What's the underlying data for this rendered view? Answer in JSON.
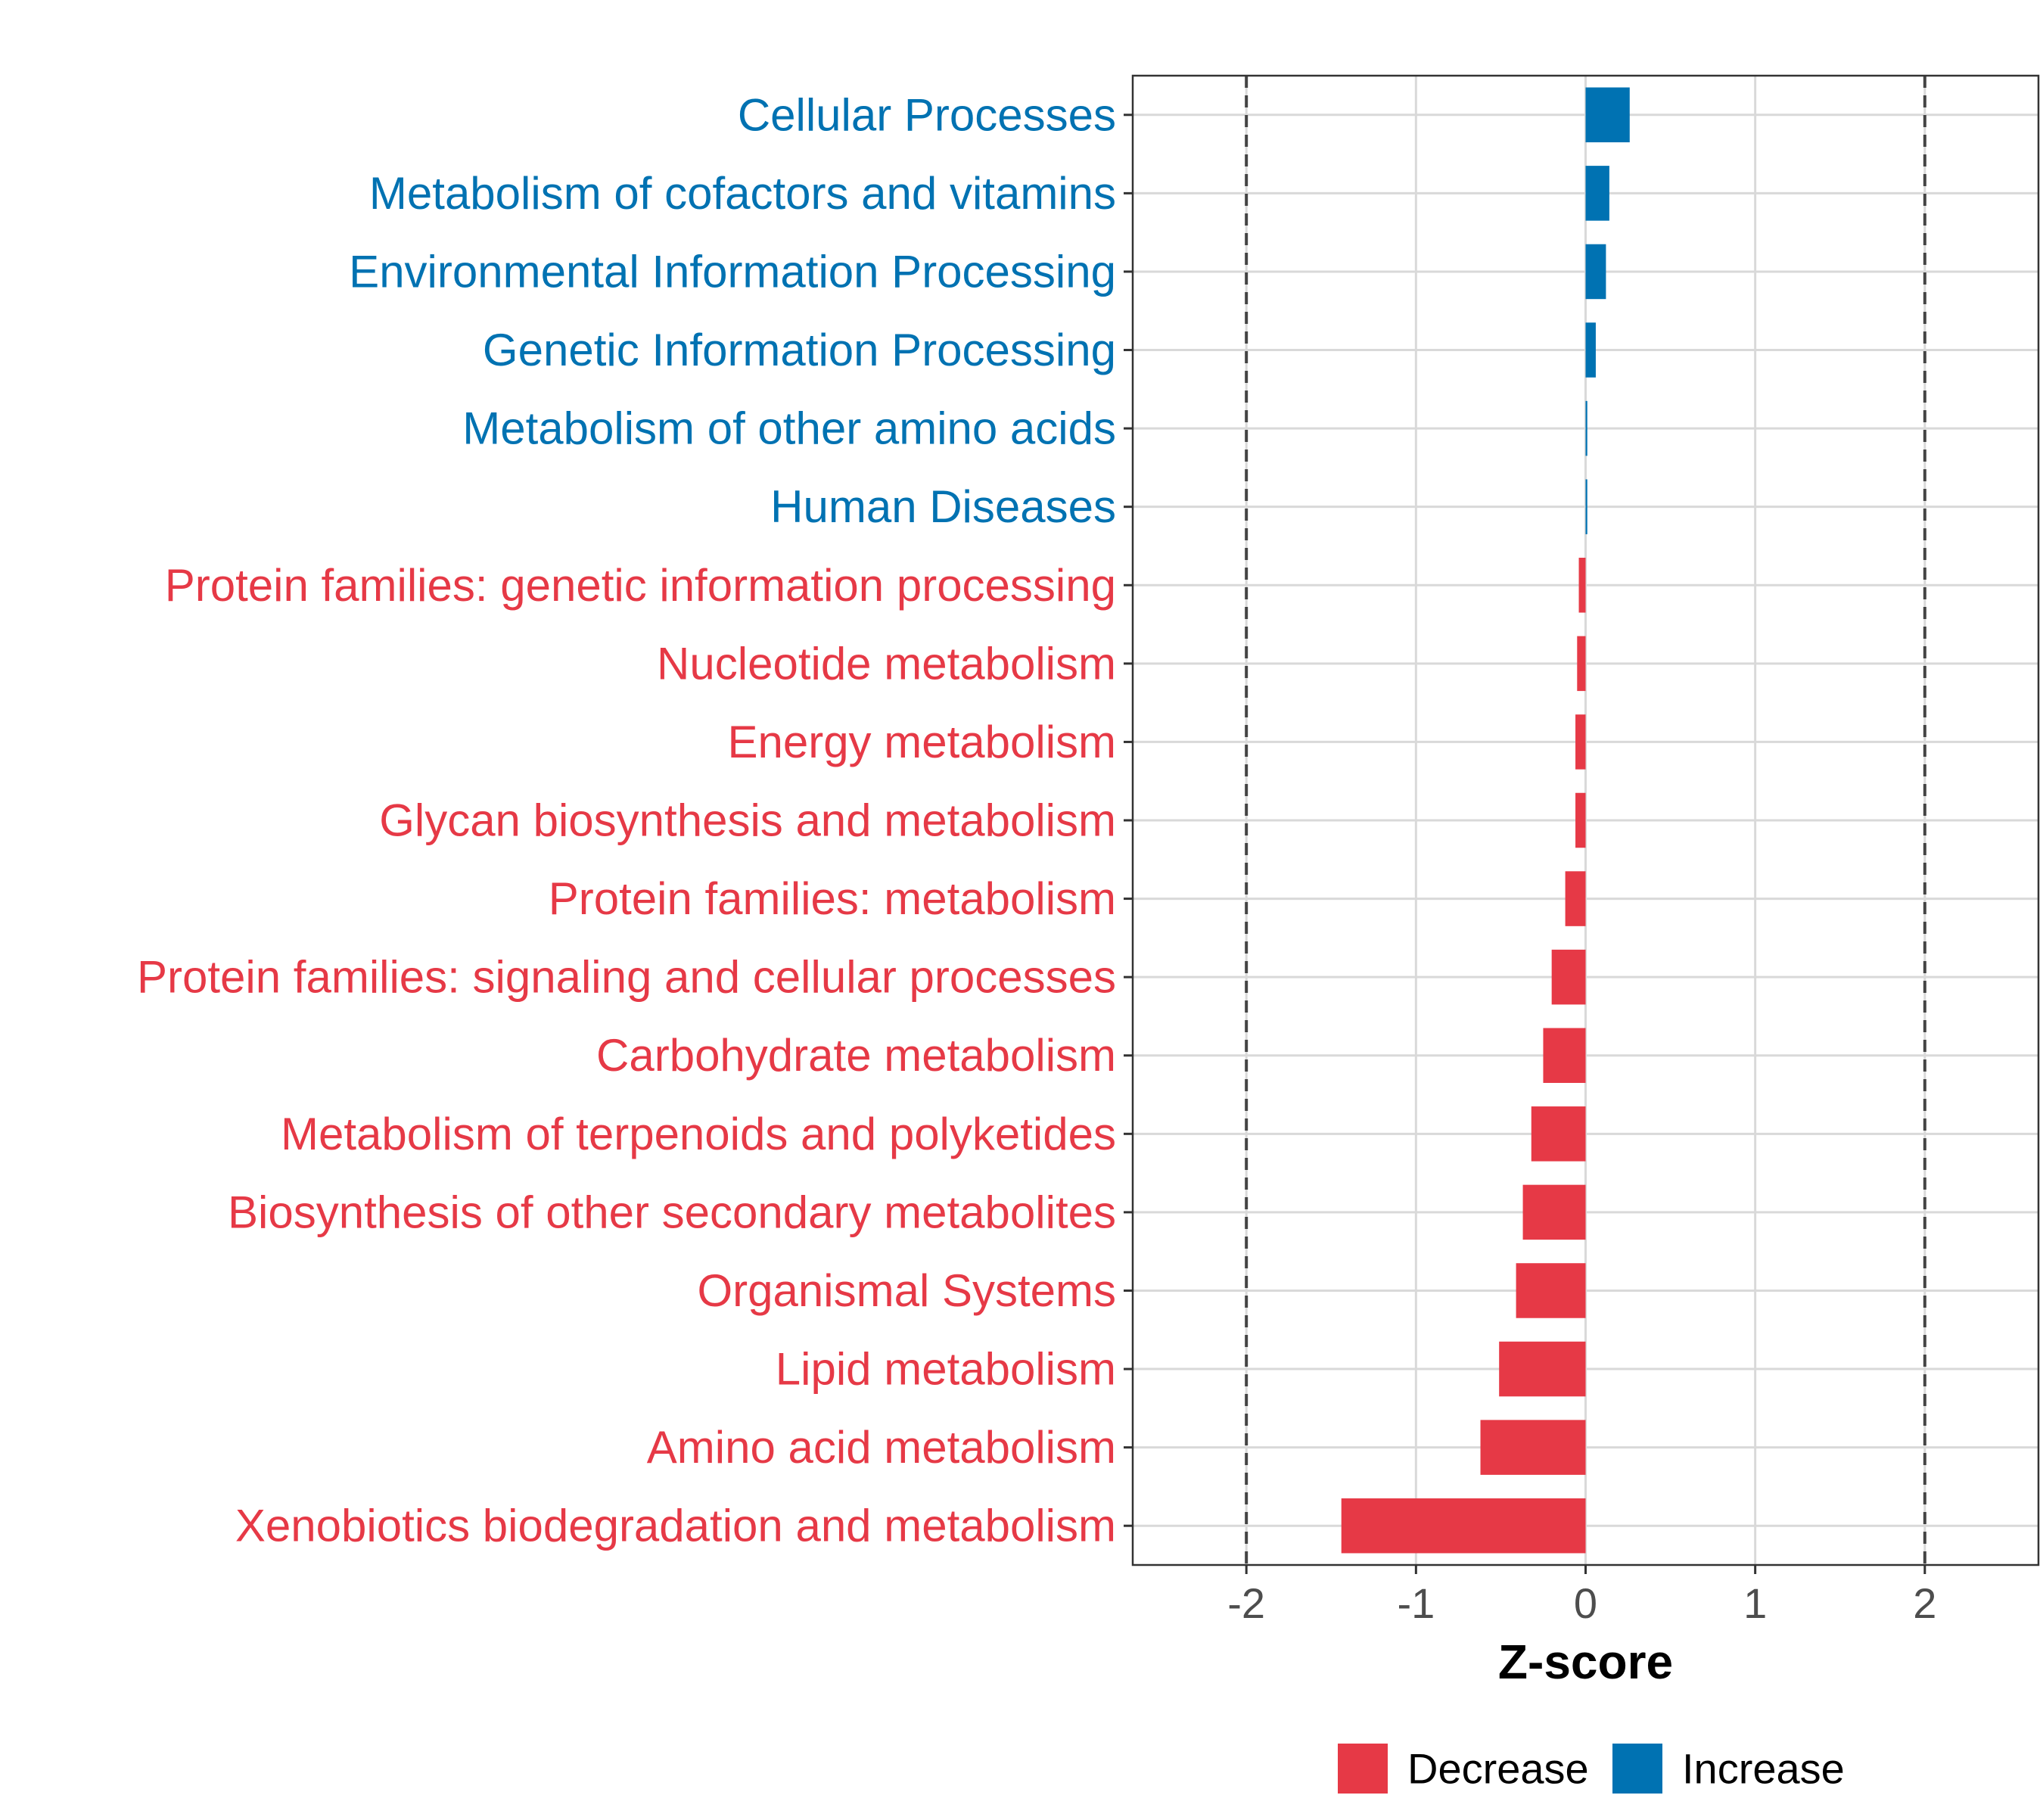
{
  "chart_data": {
    "type": "bar",
    "orientation": "horizontal",
    "xlabel": "Z-score",
    "xlim": [
      -2.67,
      2.67
    ],
    "xticks": [
      -2,
      -1,
      0,
      1,
      2
    ],
    "xtick_labels": [
      "-2",
      "-1",
      "0",
      "1",
      "2"
    ],
    "reference_lines": [
      -2,
      2
    ],
    "grid": true,
    "legend_position": "bottom",
    "colors": {
      "Decrease": "#e63946",
      "Increase": "#0072b2"
    },
    "legend": [
      {
        "label": "Decrease",
        "color": "#e63946"
      },
      {
        "label": "Increase",
        "color": "#0072b2"
      }
    ],
    "bars": [
      {
        "category": "Cellular Processes",
        "value": 0.26,
        "direction": "Increase"
      },
      {
        "category": "Metabolism of cofactors and vitamins",
        "value": 0.14,
        "direction": "Increase"
      },
      {
        "category": "Environmental Information Processing",
        "value": 0.12,
        "direction": "Increase"
      },
      {
        "category": "Genetic Information Processing",
        "value": 0.06,
        "direction": "Increase"
      },
      {
        "category": "Metabolism of other amino acids",
        "value": 0.01,
        "direction": "Increase"
      },
      {
        "category": "Human Diseases",
        "value": 0.01,
        "direction": "Increase"
      },
      {
        "category": "Protein families: genetic information processing",
        "value": -0.04,
        "direction": "Decrease"
      },
      {
        "category": "Nucleotide metabolism",
        "value": -0.05,
        "direction": "Decrease"
      },
      {
        "category": "Energy metabolism",
        "value": -0.06,
        "direction": "Decrease"
      },
      {
        "category": "Glycan biosynthesis and metabolism",
        "value": -0.06,
        "direction": "Decrease"
      },
      {
        "category": "Protein families: metabolism",
        "value": -0.12,
        "direction": "Decrease"
      },
      {
        "category": "Protein families: signaling and cellular processes",
        "value": -0.2,
        "direction": "Decrease"
      },
      {
        "category": "Carbohydrate metabolism",
        "value": -0.25,
        "direction": "Decrease"
      },
      {
        "category": "Metabolism of terpenoids and polyketides",
        "value": -0.32,
        "direction": "Decrease"
      },
      {
        "category": "Biosynthesis of other secondary metabolites",
        "value": -0.37,
        "direction": "Decrease"
      },
      {
        "category": "Organismal Systems",
        "value": -0.41,
        "direction": "Decrease"
      },
      {
        "category": "Lipid metabolism",
        "value": -0.51,
        "direction": "Decrease"
      },
      {
        "category": "Amino acid metabolism",
        "value": -0.62,
        "direction": "Decrease"
      },
      {
        "category": "Xenobiotics biodegradation and metabolism",
        "value": -1.44,
        "direction": "Decrease"
      }
    ]
  }
}
